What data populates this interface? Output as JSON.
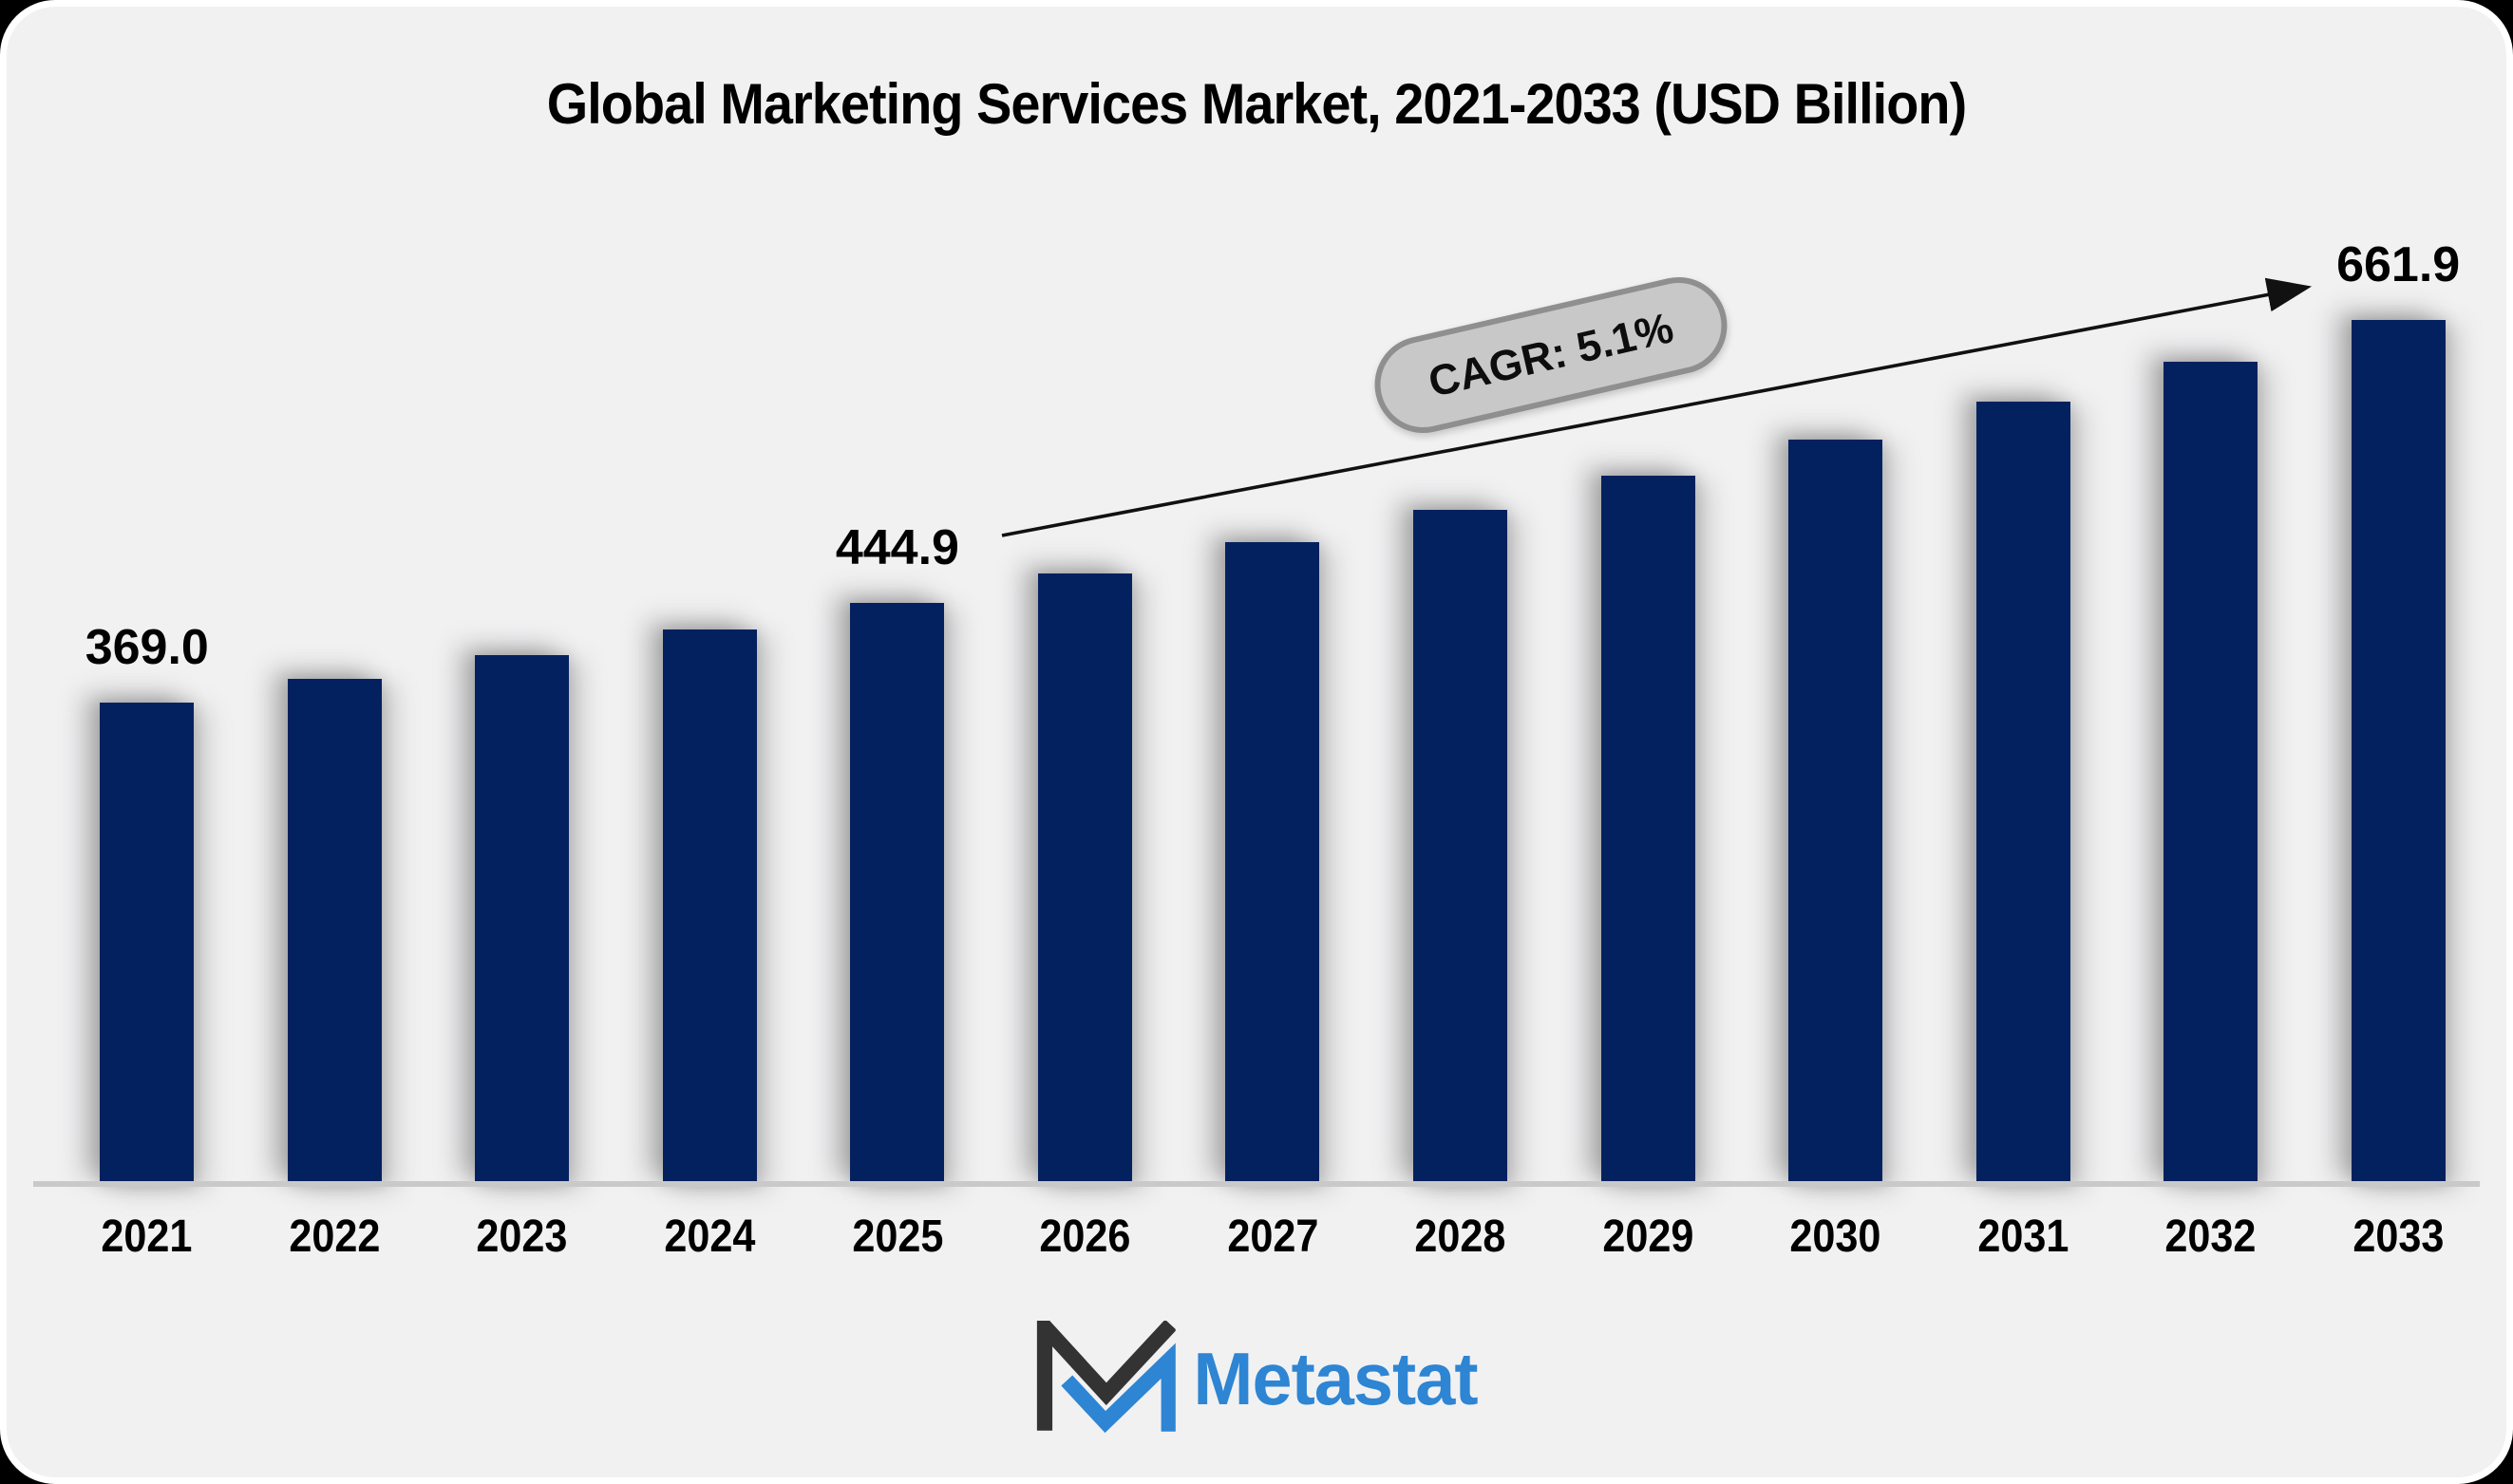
{
  "title": "Global Marketing Services Market, 2021-2033 (USD Billion)",
  "cagr_badge": {
    "label": "CAGR: 5.1%"
  },
  "logo": {
    "text": "Metastat",
    "icon": "metastat-m-logo"
  },
  "colors": {
    "bar": "#04215f",
    "background": "#f1f1f2",
    "badge_fill": "#c8c8c8",
    "badge_border": "#8f8f8f",
    "axis_line": "#c9c9c9",
    "logo_blue": "#2d85d3",
    "logo_dark": "#333333"
  },
  "chart_data": {
    "type": "bar",
    "title": "Global Marketing Services Market, 2021-2033 (USD Billion)",
    "categories": [
      "2021",
      "2022",
      "2023",
      "2024",
      "2025",
      "2026",
      "2027",
      "2028",
      "2029",
      "2030",
      "2031",
      "2032",
      "2033"
    ],
    "values": [
      369.0,
      386.7,
      405.2,
      424.6,
      444.9,
      467.6,
      491.4,
      516.5,
      542.8,
      570.5,
      599.6,
      630.2,
      661.9
    ],
    "value_labels": {
      "2021": "369.0",
      "2025": "444.9",
      "2033": "661.9"
    },
    "annotation": "CAGR: 5.1%",
    "xlabel": "",
    "ylabel": "USD Billion",
    "ylim": [
      0,
      680
    ],
    "grid": false,
    "legend": false,
    "bar_color": "#04215f"
  }
}
